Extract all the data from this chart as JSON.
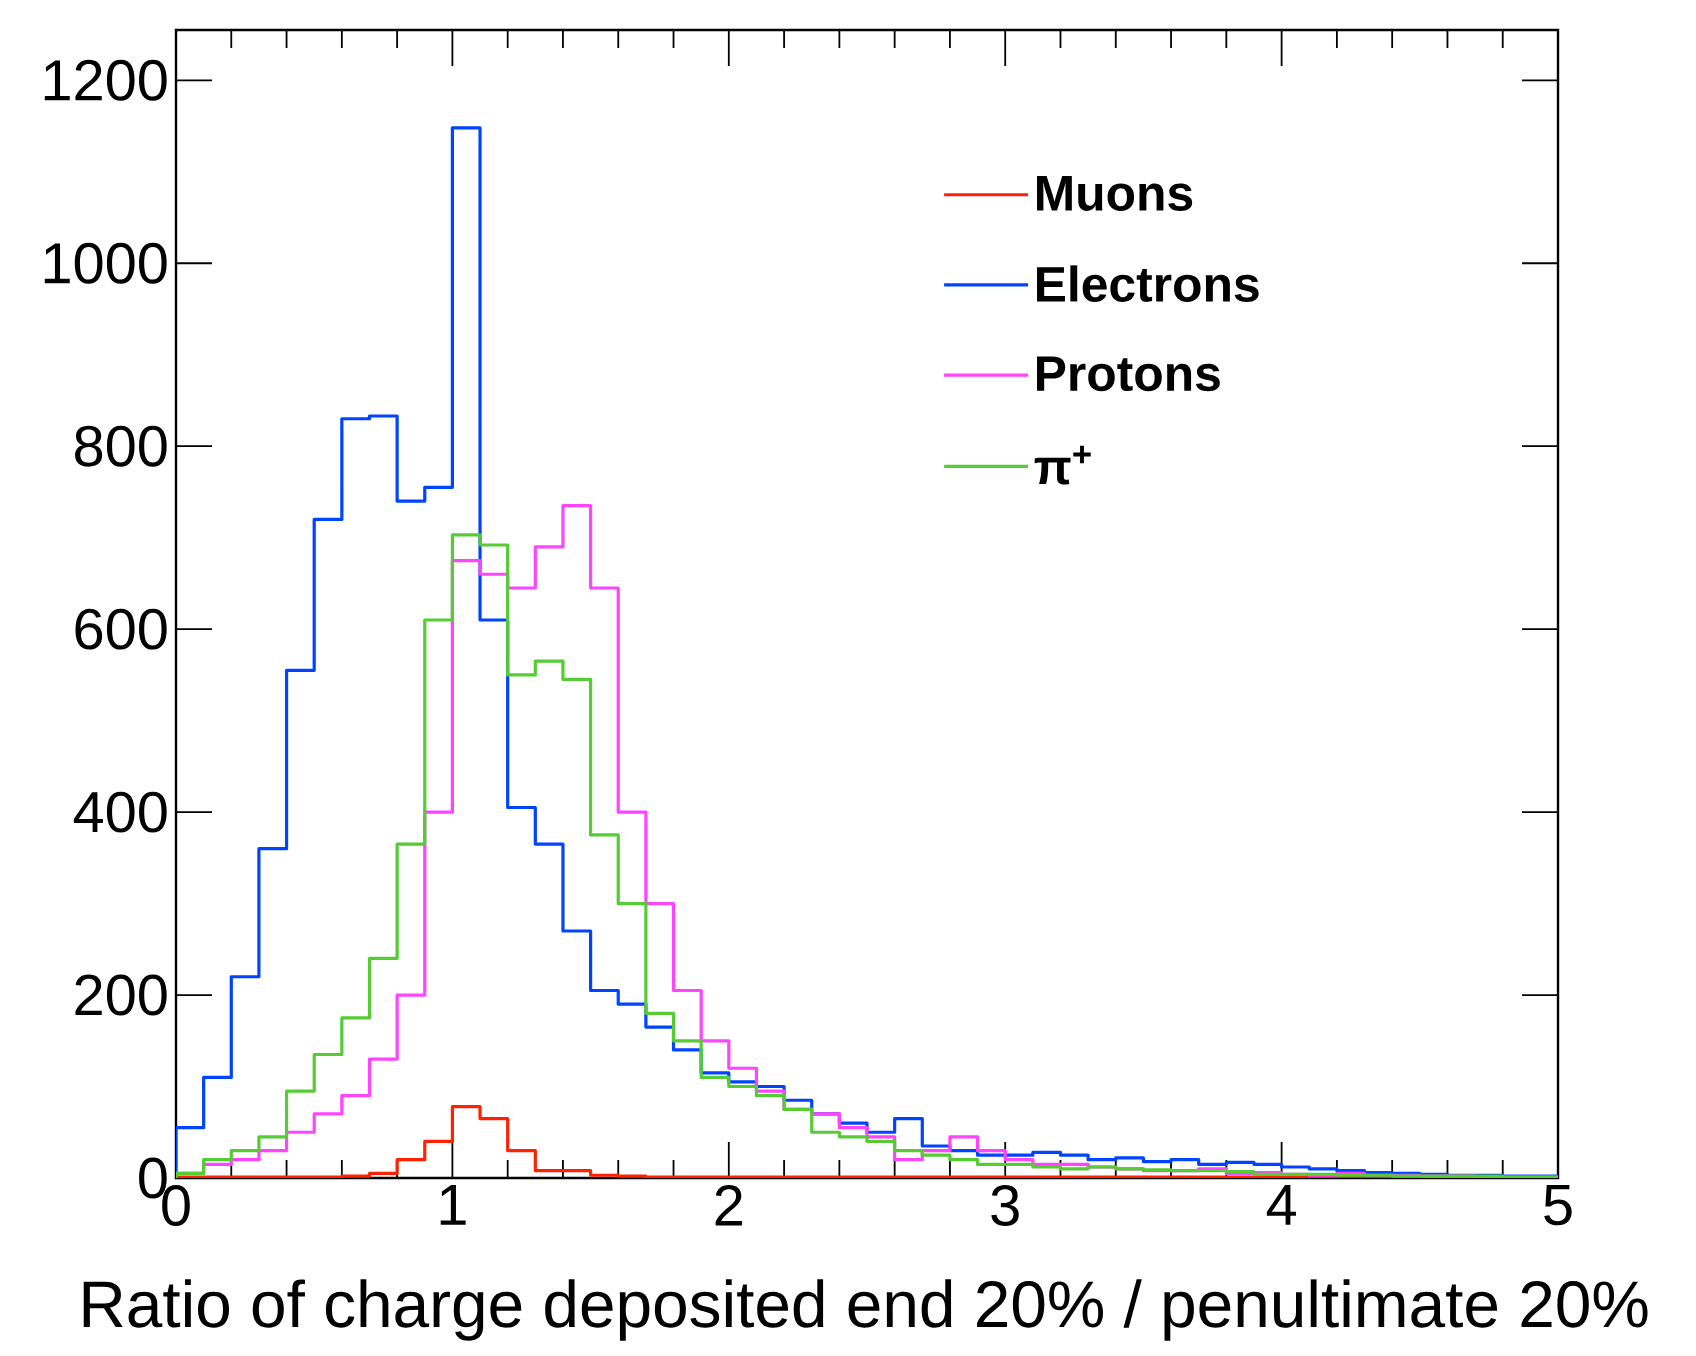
{
  "chart_data": {
    "type": "histogram",
    "xlabel": "Ratio of charge deposited end 20% / penultimate 20%",
    "bins": [
      0,
      0.1,
      0.2,
      0.3,
      0.4,
      0.5,
      0.6,
      0.7,
      0.8,
      0.9,
      1.0,
      1.1,
      1.2,
      1.3,
      1.4,
      1.5,
      1.6,
      1.7,
      1.8,
      1.9,
      2.0,
      2.1,
      2.2,
      2.3,
      2.4,
      2.5,
      2.6,
      2.7,
      2.8,
      2.9,
      3.0,
      3.1,
      3.2,
      3.3,
      3.4,
      3.5,
      3.6,
      3.7,
      3.8,
      3.9,
      4.0,
      4.1,
      4.2,
      4.3,
      4.4,
      4.5,
      4.6,
      4.7,
      4.8,
      4.9,
      5.0
    ],
    "series": [
      {
        "name": "Muons",
        "color": "#ff2200",
        "values": [
          1,
          1,
          1,
          1,
          1,
          1,
          2,
          5,
          20,
          40,
          78,
          65,
          30,
          8,
          8,
          3,
          2,
          1,
          1,
          1,
          1,
          1,
          1,
          1,
          1,
          1,
          1,
          1,
          1,
          1,
          1,
          1,
          1,
          1,
          1,
          1,
          1,
          1,
          1,
          1,
          1,
          1,
          1,
          1,
          1,
          1,
          1,
          1,
          1,
          1
        ]
      },
      {
        "name": "Electrons",
        "color": "#0044ff",
        "values": [
          55,
          110,
          220,
          360,
          555,
          720,
          830,
          833,
          740,
          755,
          1148,
          610,
          405,
          365,
          270,
          205,
          190,
          165,
          140,
          115,
          105,
          100,
          85,
          70,
          60,
          50,
          65,
          35,
          30,
          25,
          25,
          28,
          25,
          20,
          22,
          18,
          20,
          15,
          17,
          15,
          12,
          10,
          8,
          6,
          5,
          4,
          3,
          3,
          2,
          2
        ]
      },
      {
        "name": "Protons",
        "color": "#ff44ff",
        "values": [
          5,
          15,
          20,
          30,
          50,
          70,
          90,
          130,
          200,
          400,
          675,
          660,
          645,
          690,
          735,
          645,
          400,
          300,
          205,
          150,
          120,
          95,
          75,
          70,
          55,
          45,
          20,
          30,
          45,
          30,
          20,
          15,
          15,
          12,
          10,
          8,
          8,
          10,
          5,
          6,
          4,
          3,
          5,
          3,
          3,
          2,
          2,
          1,
          1,
          1
        ]
      },
      {
        "name": "π$^{+}$",
        "color": "#55cc33",
        "values": [
          5,
          20,
          30,
          45,
          95,
          135,
          175,
          240,
          365,
          610,
          703,
          692,
          550,
          565,
          545,
          375,
          300,
          180,
          150,
          110,
          100,
          90,
          75,
          50,
          45,
          40,
          30,
          25,
          20,
          15,
          15,
          12,
          10,
          12,
          10,
          9,
          8,
          8,
          7,
          4,
          4,
          4,
          3,
          3,
          2,
          2,
          2,
          2,
          1,
          1
        ]
      }
    ],
    "xlim": [
      0,
      5
    ],
    "ylim": [
      0,
      1255
    ],
    "xticks": [
      0,
      1,
      2,
      3,
      4,
      5
    ],
    "yticks": [
      0,
      200,
      400,
      600,
      800,
      1000,
      1200
    ],
    "legend": "top right"
  }
}
